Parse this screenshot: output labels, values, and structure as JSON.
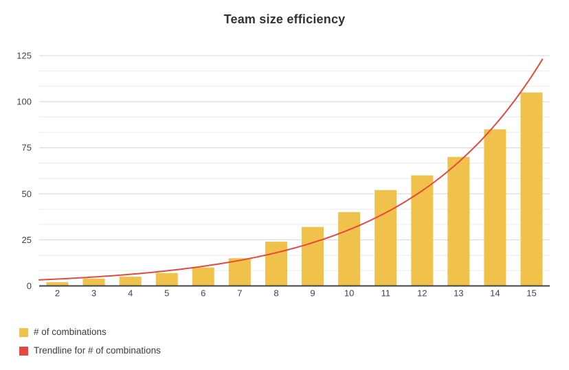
{
  "chart_data": {
    "type": "bar",
    "title": "Team size efficiency",
    "xlabel": "",
    "ylabel": "",
    "categories": [
      "2",
      "3",
      "4",
      "5",
      "6",
      "7",
      "8",
      "9",
      "10",
      "11",
      "12",
      "13",
      "14",
      "15"
    ],
    "series": [
      {
        "name": "# of combinations",
        "color": "#f0c24b",
        "values": [
          2,
          4,
          5,
          7,
          10,
          15,
          24,
          32,
          40,
          52,
          60,
          70,
          85,
          105
        ]
      }
    ],
    "trendline": {
      "name": "Trendline for # of combinations",
      "color": "#e8473c",
      "type": "exponential",
      "equation_a": 2.2,
      "equation_b": 0.263,
      "x_start": 1.5,
      "x_end": 15.35
    },
    "y_ticks": [
      "0",
      "25",
      "50",
      "75",
      "100",
      "125"
    ],
    "y_tick_values": [
      0,
      25,
      50,
      75,
      100,
      125
    ],
    "ylim": [
      0,
      125
    ],
    "minor_gridlines_between_majors": 2,
    "grid": true,
    "legend_position": "bottom-left"
  },
  "legend": {
    "items": [
      {
        "label": "# of combinations",
        "color": "#f0c24b"
      },
      {
        "label": "Trendline for # of combinations",
        "color": "#e8473c"
      }
    ]
  },
  "colors": {
    "background": "#ffffff",
    "title_text": "#333333",
    "tick_text": "#424242",
    "axis_line": "#424242",
    "major_gridline": "#d4d4d4",
    "minor_gridline": "#ececec",
    "bar": "#f0c24b",
    "trendline": "#e8473c"
  }
}
